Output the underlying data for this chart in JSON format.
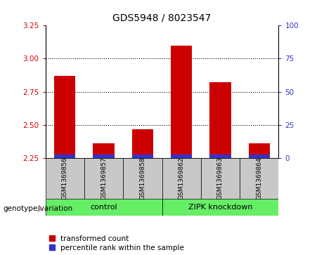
{
  "title": "GDS5948 / 8023547",
  "samples": [
    "GSM1369856",
    "GSM1369857",
    "GSM1369858",
    "GSM1369862",
    "GSM1369863",
    "GSM1369864"
  ],
  "transformed_counts": [
    2.87,
    2.36,
    2.47,
    3.1,
    2.82,
    2.36
  ],
  "ylim_left": [
    2.25,
    3.25
  ],
  "yticks_left": [
    2.25,
    2.5,
    2.75,
    3.0,
    3.25
  ],
  "yticks_right": [
    0,
    25,
    50,
    75,
    100
  ],
  "ylim_right": [
    0,
    100
  ],
  "bar_color_red": "#CC0000",
  "bar_color_blue": "#3333CC",
  "bar_width": 0.55,
  "background_plot": "#FFFFFF",
  "sample_box_color": "#C8C8C8",
  "group_box_color": "#66EE66",
  "left_tick_color": "#CC0000",
  "right_tick_color": "#3333CC",
  "grid_color": "#000000",
  "base_value": 2.25,
  "blue_bar_height": 0.025,
  "genotype_label": "genotype/variation",
  "group_labels": [
    "control",
    "ZIPK knockdown"
  ],
  "group_ranges": [
    [
      0,
      2
    ],
    [
      3,
      5
    ]
  ],
  "legend_red": "transformed count",
  "legend_blue": "percentile rank within the sample",
  "grid_lines": [
    2.5,
    2.75,
    3.0
  ]
}
